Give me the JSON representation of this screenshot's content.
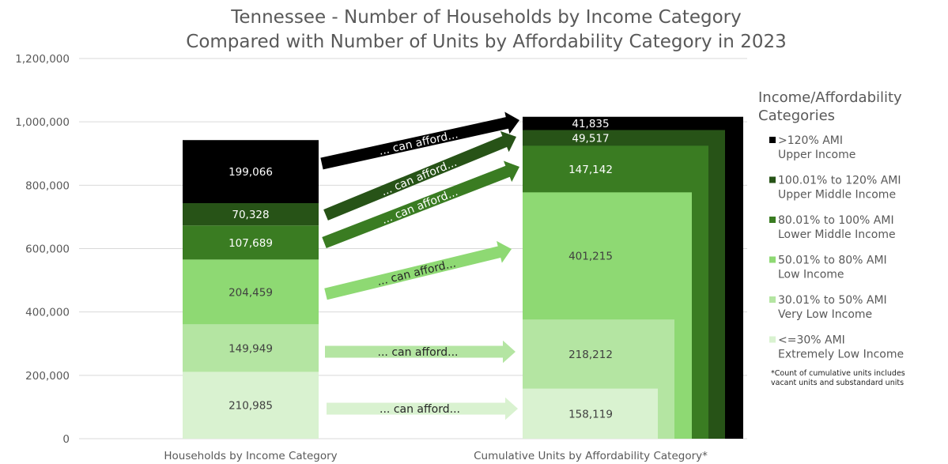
{
  "chart_data": {
    "type": "bar",
    "subtype": "stacked-bar-with-nested-cumulative-bars",
    "title": [
      "Tennessee - Number of Households by Income Category",
      "Compared with Number of Units by Affordability Category in 2023"
    ],
    "xlabel": "",
    "ylabel": "",
    "ylim": [
      0,
      1200000
    ],
    "yticks": [
      0,
      200000,
      400000,
      600000,
      800000,
      1000000,
      1200000
    ],
    "ytick_labels": [
      "0",
      "200,000",
      "400,000",
      "600,000",
      "800,000",
      "1,000,000",
      "1,200,000"
    ],
    "grid": true,
    "categories": [
      "Households by Income Category",
      "Cumulative Units by Affordability Category*"
    ],
    "series": [
      {
        "name": "<=30% AMI Extremely Low Income",
        "color": "#d9f2d0",
        "households": 210985,
        "units": 158119
      },
      {
        "name": "30.01% to 50% AMI Very Low Income",
        "color": "#b4e5a2",
        "households": 149949,
        "units": 218212
      },
      {
        "name": "50.01% to 80% AMI Low Income",
        "color": "#8ed973",
        "households": 204459,
        "units": 401215
      },
      {
        "name": "80.01% to 100% AMI Lower Middle Income",
        "color": "#3a7c22",
        "households": 107689,
        "units": 147142
      },
      {
        "name": "100.01% to 120% AMI Upper Middle Income",
        "color": "#275317",
        "households": 70328,
        "units": 49517
      },
      {
        "name": ">120% AMI Upper Income",
        "color": "#000000",
        "households": 199066,
        "units": 41835
      }
    ],
    "label_colors": {
      "<=30% AMI Extremely Low Income": "#404040",
      "30.01% to 50% AMI Very Low Income": "#404040",
      "50.01% to 80% AMI Low Income": "#404040",
      "80.01% to 100% AMI Lower Middle Income": "#ffffff",
      "100.01% to 120% AMI Upper Middle Income": "#ffffff",
      ">120% AMI Upper Income": "#ffffff"
    },
    "annotations": {
      "arrow_text": "... can afford...",
      "arrows": [
        {
          "from": ">120% AMI Upper Income",
          "color": "#000000",
          "text_color": "#ffffff"
        },
        {
          "from": "100.01% to 120% AMI Upper Middle Income",
          "color": "#275317",
          "text_color": "#ffffff"
        },
        {
          "from": "80.01% to 100% AMI Lower Middle Income",
          "color": "#3a7c22",
          "text_color": "#ffffff"
        },
        {
          "from": "50.01% to 80% AMI Low Income",
          "color": "#8ed973",
          "text_color": "#262626"
        },
        {
          "from": "30.01% to 50% AMI Very Low Income",
          "color": "#b4e5a2",
          "text_color": "#262626"
        },
        {
          "from": "<=30% AMI Extremely Low Income",
          "color": "#d9f2d0",
          "text_color": "#262626"
        }
      ]
    },
    "legend": {
      "title": [
        "Income/Affordability",
        "Categories"
      ],
      "placement": "right",
      "items": [
        {
          "line1": ">120% AMI",
          "line2": "Upper Income",
          "color": "#000000"
        },
        {
          "line1": "100.01% to 120% AMI",
          "line2": "Upper Middle Income",
          "color": "#275317"
        },
        {
          "line1": "80.01% to 100% AMI",
          "line2": "Lower Middle Income",
          "color": "#3a7c22"
        },
        {
          "line1": "50.01% to 80% AMI",
          "line2": "Low Income",
          "color": "#8ed973"
        },
        {
          "line1": "30.01% to 50% AMI",
          "line2": "Very Low Income",
          "color": "#b4e5a2"
        },
        {
          "line1": "<=30% AMI",
          "line2": "Extremely Low Income",
          "color": "#d9f2d0"
        }
      ]
    },
    "footnote": [
      "*Count of cumulative units includes",
      "vacant units and substandard units"
    ]
  }
}
